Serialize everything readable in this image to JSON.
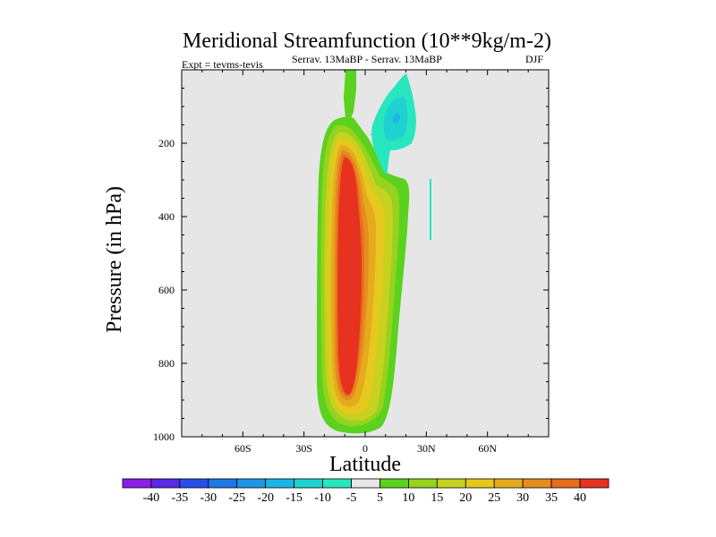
{
  "chart_data": {
    "type": "contour",
    "title": "Meridional Streamfunction (10**9kg/m-2)",
    "subtitle_left": "Expt = tevms-tevis",
    "subtitle_center": "Serrav.   13MaBP - Serrav.   13MaBP",
    "subtitle_right": "DJF",
    "xlabel": "Latitude",
    "ylabel": "Pressure (in hPa)",
    "xlim": [
      -90,
      90
    ],
    "ylim": [
      1000,
      0
    ],
    "x_ticks": [
      {
        "value": -60,
        "label": "60S"
      },
      {
        "value": -30,
        "label": "30S"
      },
      {
        "value": 0,
        "label": "0"
      },
      {
        "value": 30,
        "label": "30N"
      },
      {
        "value": 60,
        "label": "60N"
      }
    ],
    "y_ticks": [
      {
        "value": 200,
        "label": "200"
      },
      {
        "value": 400,
        "label": "400"
      },
      {
        "value": 600,
        "label": "600"
      },
      {
        "value": 800,
        "label": "800"
      },
      {
        "value": 1000,
        "label": "1000"
      }
    ],
    "background_color": "#e6e6e6",
    "colorbar": {
      "levels": [
        "-40",
        "-35",
        "-30",
        "-25",
        "-20",
        "-15",
        "-10",
        "-5",
        "5",
        "10",
        "15",
        "20",
        "25",
        "30",
        "35",
        "40"
      ],
      "colors": [
        "#8c1ee6",
        "#5a28e6",
        "#2850e6",
        "#1e78e6",
        "#1e96e6",
        "#1eb4e6",
        "#1ed2d2",
        "#28e6be",
        "#e6e6e6",
        "#5ad21e",
        "#96d21e",
        "#c8d21e",
        "#e6c81e",
        "#e6aa1e",
        "#e68c1e",
        "#e66e1e",
        "#e6321e"
      ]
    },
    "features": [
      {
        "name": "positive-cell-north",
        "description": "green tongue extending to top",
        "lat_range": [
          -12,
          -4
        ],
        "pressure_range": [
          0,
          120
        ],
        "level": 5
      },
      {
        "name": "main-hadley-cell",
        "core_lat": -10,
        "core_level": 40,
        "pressure_range": [
          60,
          1000
        ]
      },
      {
        "name": "negative-cell-upper",
        "lat_range": [
          5,
          18
        ],
        "pressure_range": [
          0,
          220
        ],
        "level": -5
      },
      {
        "name": "negative-thin-strip",
        "lat": 32,
        "pressure_range": [
          300,
          460
        ],
        "level": -5
      }
    ]
  }
}
